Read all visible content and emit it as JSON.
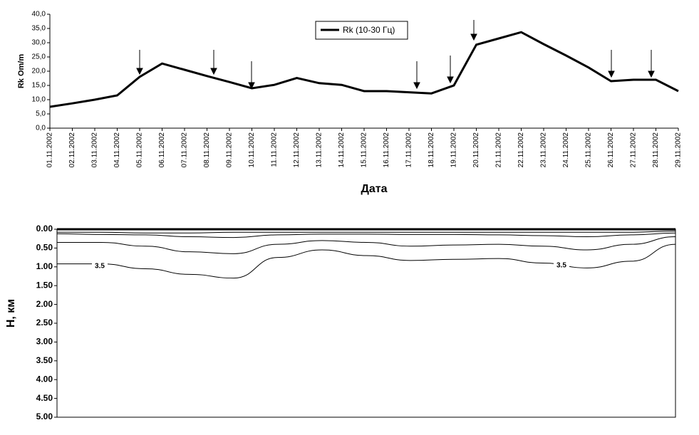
{
  "chart_data": [
    {
      "type": "line",
      "y_label": "Rk Om/m",
      "x_label": "Дата",
      "categories": [
        "01.11.2002",
        "02.11.2002",
        "03.11.2002",
        "04.11.2002",
        "05.11.2002",
        "06.11.2002",
        "07.11.2002",
        "08.11.2002",
        "09.11.2002",
        "10.11.2002",
        "11.11.2002",
        "12.11.2002",
        "13.11.2002",
        "14.11.2002",
        "15.11.2002",
        "16.11.2002",
        "17.11.2002",
        "18.11.2002",
        "19.11.2002",
        "20.11.2002",
        "21.11.2002",
        "22.11.2002",
        "23.11.2002",
        "24.11.2002",
        "25.11.2002",
        "26.11.2002",
        "27.11.2002",
        "28.11.2002",
        "29.11.2002"
      ],
      "series": [
        {
          "name": "Rk  (10-30 Гц)",
          "color": "#000000",
          "values": [
            7.5,
            8.7,
            10.0,
            11.5,
            18.0,
            22.7,
            20.5,
            18.3,
            16.2,
            14.0,
            15.2,
            17.6,
            15.8,
            15.2,
            13.0,
            13.0,
            12.6,
            12.2,
            15.0,
            29.3,
            31.5,
            33.7,
            29.5,
            25.5,
            21.3,
            16.5,
            17.0,
            17.0,
            13.0
          ]
        }
      ],
      "ylim": [
        0,
        40
      ],
      "yticks": [
        {
          "value": 0,
          "label": "0,0"
        },
        {
          "value": 5,
          "label": "5,0"
        },
        {
          "value": 10,
          "label": "10,0"
        },
        {
          "value": 15,
          "label": "15,0"
        },
        {
          "value": 20,
          "label": "20,0"
        },
        {
          "value": 25,
          "label": "25,0"
        },
        {
          "value": 30,
          "label": "30,0"
        },
        {
          "value": 35,
          "label": "35,0"
        },
        {
          "value": 40,
          "label": "40,0"
        }
      ]
    },
    {
      "type": "contour",
      "y_label": "H, км",
      "ylim": [
        0,
        5
      ],
      "yticks": [
        {
          "value": 0,
          "label": "0.00"
        },
        {
          "value": 0.5,
          "label": "0.50"
        },
        {
          "value": 1,
          "label": "1.00"
        },
        {
          "value": 1.5,
          "label": "1.50"
        },
        {
          "value": 2,
          "label": "2.00"
        },
        {
          "value": 2.5,
          "label": "2.50"
        },
        {
          "value": 3,
          "label": "3.00"
        },
        {
          "value": 3.5,
          "label": "3.50"
        },
        {
          "value": 4,
          "label": "4.00"
        },
        {
          "value": 4.5,
          "label": "4.50"
        },
        {
          "value": 5,
          "label": "5.00"
        }
      ],
      "color": "#000000",
      "lines": [
        [
          0.08,
          0.08,
          0.1,
          0.1,
          0.08,
          0.08,
          0.08,
          0.08,
          0.08,
          0.08,
          0.08,
          0.08,
          0.08,
          0.08,
          0.05
        ],
        [
          0.12,
          0.14,
          0.15,
          0.2,
          0.22,
          0.15,
          0.13,
          0.13,
          0.14,
          0.14,
          0.15,
          0.17,
          0.2,
          0.15,
          0.1
        ],
        [
          0.35,
          0.35,
          0.45,
          0.6,
          0.65,
          0.4,
          0.3,
          0.35,
          0.45,
          0.42,
          0.4,
          0.45,
          0.55,
          0.4,
          0.2
        ],
        [
          0.92,
          0.92,
          1.05,
          1.2,
          1.3,
          0.75,
          0.55,
          0.7,
          0.83,
          0.8,
          0.78,
          0.9,
          1.03,
          0.85,
          0.4
        ]
      ],
      "annotations": [
        "3.5",
        "3.5"
      ]
    }
  ]
}
